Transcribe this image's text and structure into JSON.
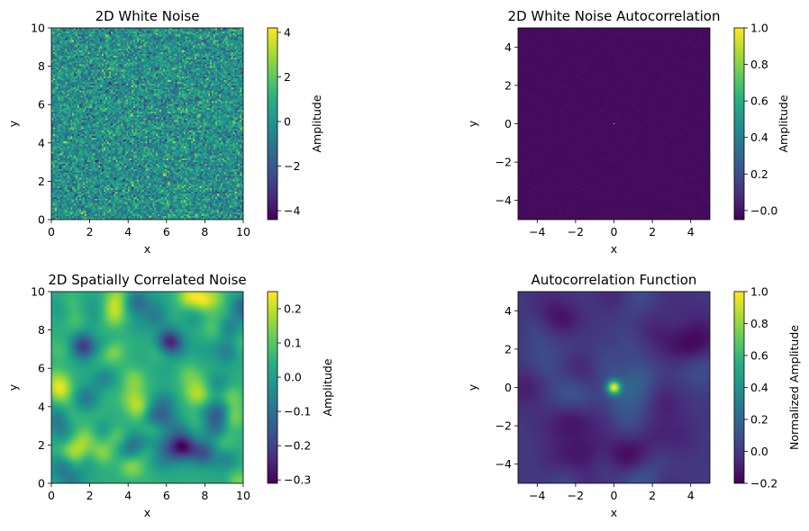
{
  "chart_data": [
    {
      "type": "heatmap",
      "title": "2D White Noise",
      "xlabel": "x",
      "ylabel": "y",
      "xlim": [
        0,
        10
      ],
      "ylim": [
        0,
        10
      ],
      "xticks": [
        0,
        2,
        4,
        6,
        8,
        10
      ],
      "yticks": [
        0,
        2,
        4,
        6,
        8,
        10
      ],
      "colormap": "viridis",
      "field": "white-noise",
      "colorbar": {
        "label": "Amplitude",
        "range": [
          -4.4,
          4.2
        ],
        "ticks": [
          4,
          2,
          0,
          -2,
          -4
        ],
        "tick_labels": [
          "4",
          "2",
          "0",
          "−2",
          "−4"
        ]
      }
    },
    {
      "type": "heatmap",
      "title": "2D White Noise Autocorrelation",
      "xlabel": "x",
      "ylabel": "y",
      "xlim": [
        -5,
        5
      ],
      "ylim": [
        -5,
        5
      ],
      "xticks": [
        -4,
        -2,
        0,
        2,
        4
      ],
      "yticks": [
        -4,
        -2,
        0,
        2,
        4
      ],
      "colormap": "viridis",
      "field": "white-noise-autocorrelation",
      "peak": {
        "x": 0,
        "y": 0,
        "value": 1.0
      },
      "colorbar": {
        "label": "Amplitude",
        "range": [
          -0.05,
          1.0
        ],
        "ticks": [
          1.0,
          0.8,
          0.6,
          0.4,
          0.2,
          0.0
        ],
        "tick_labels": [
          "1.0",
          "0.8",
          "0.6",
          "0.4",
          "0.2",
          "−0.0"
        ]
      }
    },
    {
      "type": "heatmap",
      "title": "2D Spatially Correlated Noise",
      "xlabel": "x",
      "ylabel": "y",
      "xlim": [
        0,
        10
      ],
      "ylim": [
        0,
        10
      ],
      "xticks": [
        0,
        2,
        4,
        6,
        8,
        10
      ],
      "yticks": [
        0,
        2,
        4,
        6,
        8,
        10
      ],
      "colormap": "viridis",
      "field": "correlated-noise",
      "colorbar": {
        "label": "Amplitude",
        "range": [
          -0.31,
          0.25
        ],
        "ticks": [
          0.2,
          0.1,
          0.0,
          -0.1,
          -0.2,
          -0.3
        ],
        "tick_labels": [
          "0.2",
          "0.1",
          "0.0",
          "−0.1",
          "−0.2",
          "−0.3"
        ]
      }
    },
    {
      "type": "heatmap",
      "title": "Autocorrelation Function",
      "xlabel": "x",
      "ylabel": "y",
      "xlim": [
        -5,
        5
      ],
      "ylim": [
        -5,
        5
      ],
      "xticks": [
        -4,
        -2,
        0,
        2,
        4
      ],
      "yticks": [
        -4,
        -2,
        0,
        2,
        4
      ],
      "colormap": "viridis",
      "field": "correlated-noise-autocorrelation",
      "peak": {
        "x": 0,
        "y": 0,
        "value": 1.0
      },
      "colorbar": {
        "label": "Normalized Amplitude",
        "range": [
          -0.2,
          1.0
        ],
        "ticks": [
          1.0,
          0.8,
          0.6,
          0.4,
          0.2,
          0.0,
          -0.2
        ],
        "tick_labels": [
          "1.0",
          "0.8",
          "0.6",
          "0.4",
          "0.2",
          "0.0",
          "−0.2"
        ]
      }
    }
  ]
}
